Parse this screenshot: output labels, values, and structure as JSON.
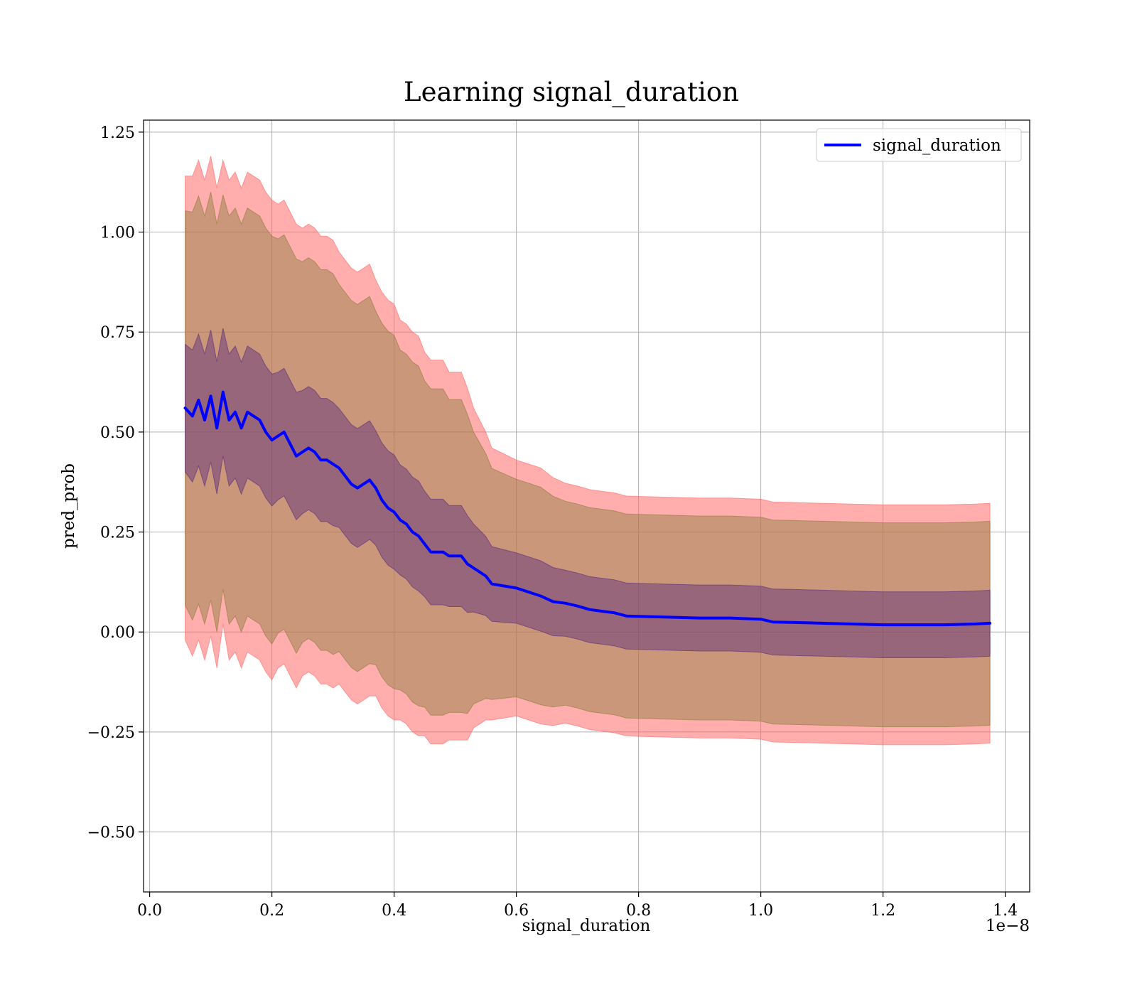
{
  "chart_data": {
    "type": "line",
    "title": "Learning signal_duration",
    "xlabel": "signal_duration",
    "ylabel": "pred_prob",
    "x_offset_label": "1e−8",
    "xlim": [
      -0.01,
      1.44
    ],
    "ylim": [
      -0.65,
      1.28
    ],
    "x_ticks": [
      0.0,
      0.2,
      0.4,
      0.6,
      0.8,
      1.0,
      1.2,
      1.4
    ],
    "x_tick_labels": [
      "0.0",
      "0.2",
      "0.4",
      "0.6",
      "0.8",
      "1.0",
      "1.2",
      "1.4"
    ],
    "y_ticks": [
      -0.5,
      -0.25,
      0.0,
      0.25,
      0.5,
      0.75,
      1.0,
      1.25
    ],
    "y_tick_labels": [
      "−0.50",
      "−0.25",
      "0.00",
      "0.25",
      "0.50",
      "0.75",
      "1.00",
      "1.25"
    ],
    "grid": true,
    "legend_position": "top-right",
    "colors": {
      "line": "#0000ff",
      "outer_band": "#ff6a6a",
      "middle_band": "#8c7c3c",
      "inner_band": "#5a2a7a"
    },
    "series": [
      {
        "name": "signal_duration",
        "x": [
          0.058,
          0.07,
          0.08,
          0.09,
          0.1,
          0.11,
          0.12,
          0.13,
          0.14,
          0.15,
          0.16,
          0.17,
          0.18,
          0.19,
          0.2,
          0.21,
          0.22,
          0.23,
          0.24,
          0.25,
          0.26,
          0.27,
          0.28,
          0.29,
          0.3,
          0.31,
          0.32,
          0.33,
          0.34,
          0.35,
          0.36,
          0.37,
          0.38,
          0.39,
          0.4,
          0.41,
          0.42,
          0.43,
          0.44,
          0.45,
          0.46,
          0.47,
          0.48,
          0.49,
          0.5,
          0.51,
          0.52,
          0.53,
          0.54,
          0.55,
          0.56,
          0.58,
          0.6,
          0.62,
          0.64,
          0.66,
          0.68,
          0.7,
          0.72,
          0.74,
          0.76,
          0.78,
          0.8,
          0.85,
          0.9,
          0.95,
          1.0,
          1.02,
          1.05,
          1.1,
          1.15,
          1.2,
          1.25,
          1.3,
          1.35,
          1.375
        ],
        "y": [
          0.56,
          0.54,
          0.58,
          0.53,
          0.59,
          0.51,
          0.6,
          0.53,
          0.55,
          0.51,
          0.55,
          0.54,
          0.53,
          0.5,
          0.48,
          0.49,
          0.5,
          0.47,
          0.44,
          0.45,
          0.46,
          0.45,
          0.43,
          0.43,
          0.42,
          0.41,
          0.39,
          0.37,
          0.36,
          0.37,
          0.38,
          0.36,
          0.33,
          0.31,
          0.3,
          0.28,
          0.27,
          0.25,
          0.24,
          0.22,
          0.2,
          0.2,
          0.2,
          0.19,
          0.19,
          0.19,
          0.17,
          0.16,
          0.15,
          0.14,
          0.12,
          0.115,
          0.11,
          0.1,
          0.09,
          0.076,
          0.072,
          0.065,
          0.056,
          0.052,
          0.048,
          0.04,
          0.039,
          0.037,
          0.035,
          0.035,
          0.032,
          0.025,
          0.024,
          0.022,
          0.02,
          0.018,
          0.018,
          0.018,
          0.02,
          0.022
        ],
        "sd": [
          0.29,
          0.3,
          0.3,
          0.3,
          0.3,
          0.3,
          0.29,
          0.3,
          0.3,
          0.3,
          0.3,
          0.3,
          0.3,
          0.3,
          0.3,
          0.29,
          0.29,
          0.29,
          0.29,
          0.28,
          0.28,
          0.28,
          0.28,
          0.28,
          0.28,
          0.27,
          0.27,
          0.27,
          0.27,
          0.27,
          0.27,
          0.26,
          0.26,
          0.26,
          0.26,
          0.25,
          0.25,
          0.25,
          0.25,
          0.24,
          0.24,
          0.24,
          0.24,
          0.23,
          0.23,
          0.23,
          0.22,
          0.2,
          0.19,
          0.18,
          0.17,
          0.165,
          0.16,
          0.16,
          0.16,
          0.155,
          0.15,
          0.15,
          0.15,
          0.15,
          0.15,
          0.15,
          0.15,
          0.15,
          0.15,
          0.15,
          0.15,
          0.15,
          0.15,
          0.15,
          0.15,
          0.15,
          0.15,
          0.15,
          0.15,
          0.15
        ]
      }
    ],
    "bands": [
      {
        "sd_multiple": 2,
        "color": "outer_band",
        "opacity": 0.55
      },
      {
        "sd_multiple": 1.7,
        "color": "middle_band",
        "opacity": 0.45
      },
      {
        "sd_multiple": 0.55,
        "color": "inner_band",
        "opacity": 0.45
      }
    ]
  }
}
